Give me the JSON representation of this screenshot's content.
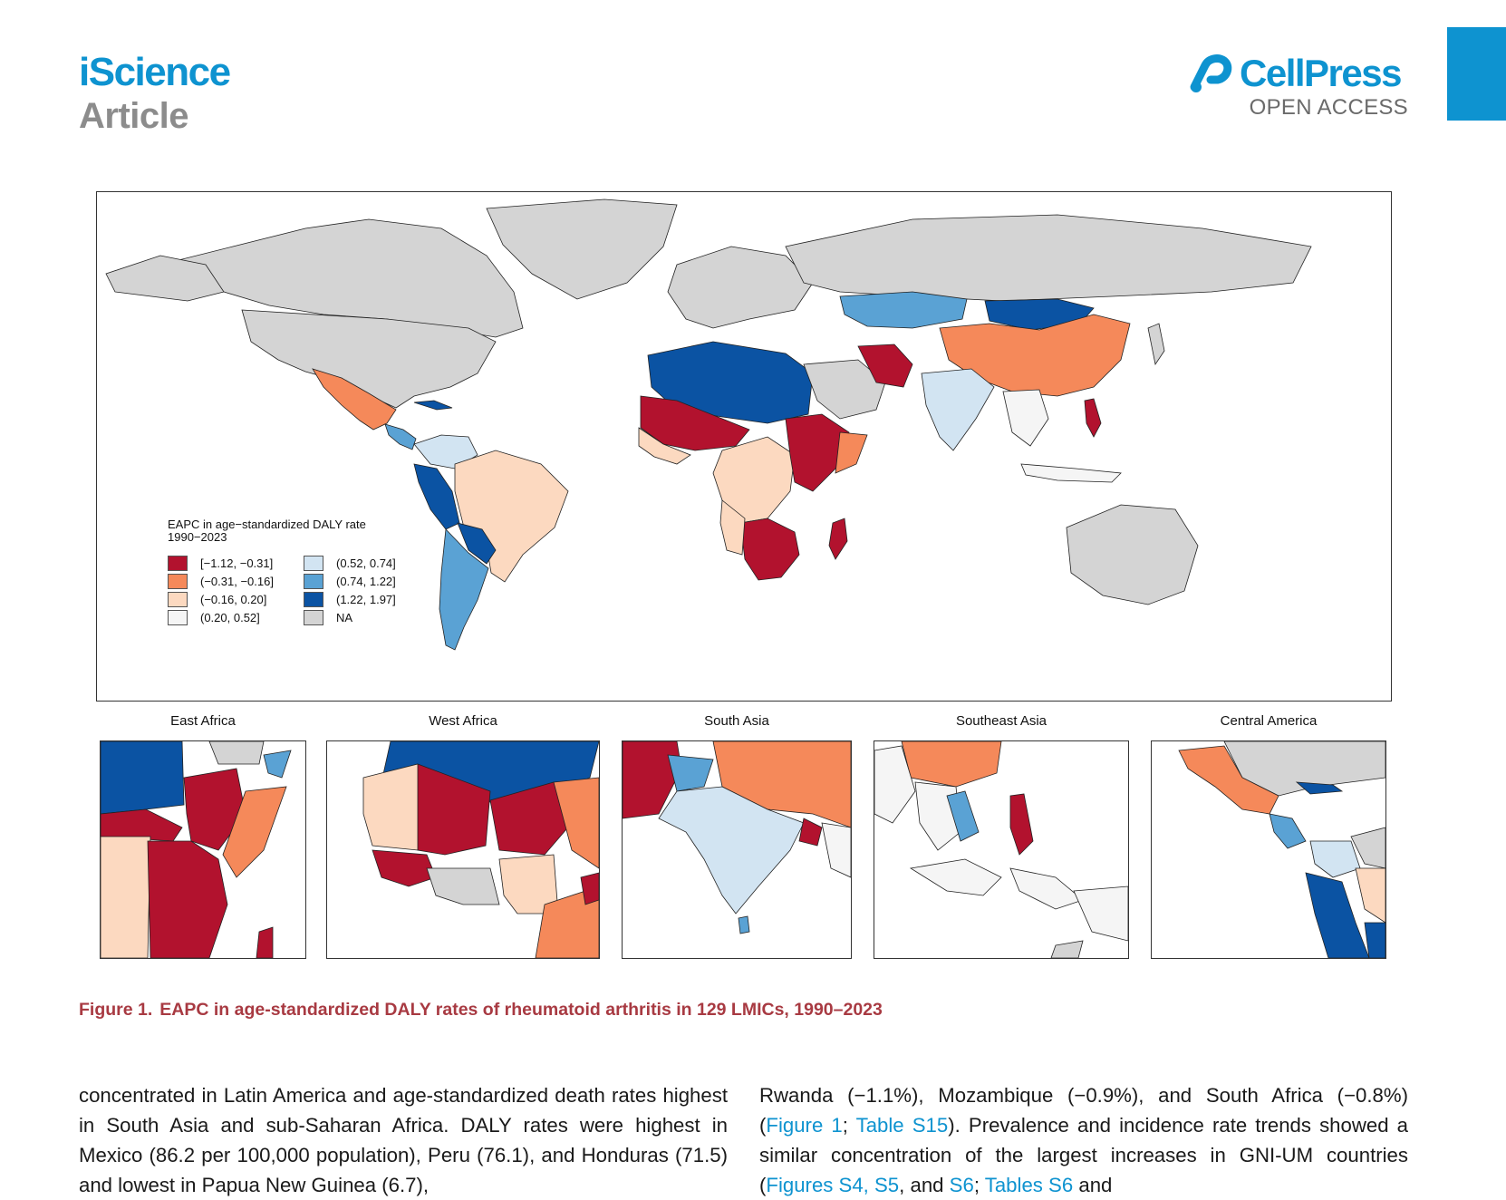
{
  "header": {
    "journal": "iScience",
    "section": "Article",
    "publisher": "CellPress",
    "publisher_sub": "OPEN ACCESS"
  },
  "colors": {
    "brand": "#0e93d0",
    "caption": "#a83a42",
    "class_1": "#b2122e",
    "class_2": "#f5895a",
    "class_3": "#fcd9c0",
    "class_4": "#f5f5f5",
    "class_5": "#d2e4f2",
    "class_6": "#5aa2d4",
    "class_7": "#0b53a3",
    "na": "#d4d4d4"
  },
  "figure": {
    "legend": {
      "title_line1": "EAPC in age−standardized DALY rate",
      "title_line2": "1990−2023",
      "items": [
        {
          "label": "[−1.12, −0.31]",
          "color": "#b2122e"
        },
        {
          "label": "(0.52, 0.74]",
          "color": "#d2e4f2"
        },
        {
          "label": "(−0.31, −0.16]",
          "color": "#f5895a"
        },
        {
          "label": "(0.74, 1.22]",
          "color": "#5aa2d4"
        },
        {
          "label": "(−0.16, 0.20]",
          "color": "#fcd9c0"
        },
        {
          "label": "(1.22, 1.97]",
          "color": "#0b53a3"
        },
        {
          "label": "(0.20, 0.52]",
          "color": "#f5f5f5"
        },
        {
          "label": "NA",
          "color": "#d4d4d4"
        }
      ]
    },
    "insets": [
      {
        "title": "East Africa"
      },
      {
        "title": "West Africa"
      },
      {
        "title": "South Asia"
      },
      {
        "title": "Southeast Asia"
      },
      {
        "title": "Central America"
      }
    ],
    "caption_label": "Figure 1.",
    "caption_text": "EAPC in age-standardized DALY rates of rheumatoid arthritis in 129 LMICs, 1990–2023"
  },
  "body": {
    "left": {
      "t1": "concentrated in Latin America and age-standardized death rates highest in South Asia and sub-Saharan Africa. DALY rates were highest in Mexico (86.2 per 100,000 population), Peru (76.1), and Honduras (71.5) and lowest in Papua New Guinea (6.7),"
    },
    "right": {
      "t1": "Rwanda (−1.1%), Mozambique (−0.9%), and South Africa (−0.8%) (",
      "l1": "Figure 1",
      "t2": "; ",
      "l2": "Table S15",
      "t3": "). Prevalence and incidence rate trends showed a similar concentration of the largest increases in GNI-UM countries (",
      "l3": "Figures S4, S5",
      "t4": ", and ",
      "l4": "S6",
      "t5": "; ",
      "l5": "Tables S6",
      "t6": " and"
    }
  }
}
